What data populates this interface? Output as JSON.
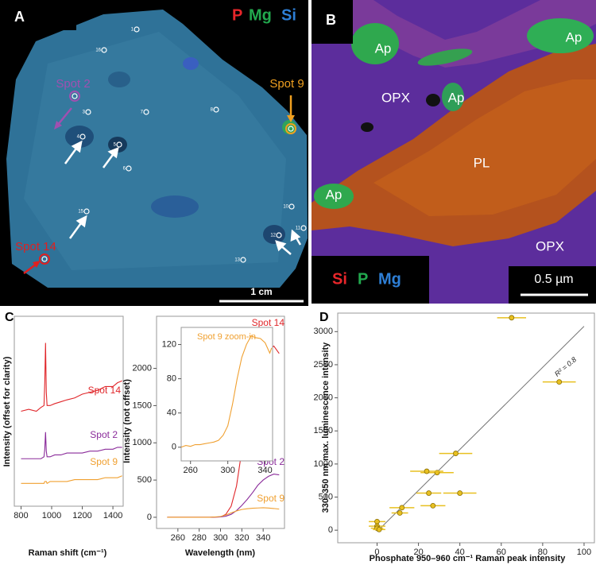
{
  "panel_a": {
    "letter": "A",
    "legend": [
      {
        "text": "P",
        "color": "#e8262a"
      },
      {
        "text": "Mg",
        "color": "#22a94e"
      },
      {
        "text": "Si",
        "color": "#2e7fd6"
      }
    ],
    "spot_numbers": [
      "1",
      "16",
      "3",
      "7",
      "8",
      "4",
      "5",
      "6",
      "15",
      "10",
      "11",
      "12",
      "13"
    ],
    "callouts": [
      "Spot 2",
      "Spot 9",
      "Spot 14"
    ],
    "scale_bar": "1 cm"
  },
  "panel_b": {
    "letter": "B",
    "labels": [
      "Ap",
      "Ap",
      "Ap",
      "Ap",
      "OPX",
      "OPX",
      "PL"
    ],
    "legend": [
      {
        "text": "Si",
        "color": "#e8262a"
      },
      {
        "text": "P",
        "color": "#22a94e"
      },
      {
        "text": "Mg",
        "color": "#2e7fd6"
      }
    ],
    "scale_bar": "0.5 µm"
  },
  "panel_c": {
    "letter": "C"
  },
  "panel_d": {
    "letter": "D"
  },
  "chart_data": [
    {
      "type": "line",
      "x": [
        800,
        850,
        900,
        930,
        950,
        955,
        960,
        965,
        970,
        990,
        1020,
        1060,
        1100,
        1150,
        1200,
        1250,
        1300,
        1350,
        1400,
        1430,
        1460
      ],
      "xlim": [
        756,
        1467
      ],
      "xticks": [
        800,
        1000,
        1200,
        1400
      ],
      "ylim": [
        0,
        10
      ],
      "xlabel": "Raman shift (cm⁻¹)",
      "ylabel": "Intensity (offset for clarity)",
      "series": [
        {
          "name": "Spot 14",
          "color": "#e0262a",
          "values": [
            5.0,
            5.1,
            5.0,
            5.2,
            5.3,
            6.5,
            8.6,
            6.0,
            5.3,
            5.3,
            5.4,
            5.5,
            5.6,
            5.7,
            5.9,
            6.0,
            6.1,
            6.3,
            6.3,
            6.5,
            6.6
          ]
        },
        {
          "name": "Spot 2",
          "color": "#8a2b9a",
          "values": [
            2.5,
            2.5,
            2.5,
            2.5,
            2.6,
            3.0,
            3.9,
            2.9,
            2.6,
            2.6,
            2.7,
            2.7,
            2.8,
            2.8,
            2.8,
            2.9,
            2.9,
            3.0,
            3.0,
            3.1,
            3.1
          ]
        },
        {
          "name": "Spot 9",
          "color": "#f0a030",
          "values": [
            1.2,
            1.2,
            1.2,
            1.2,
            1.2,
            1.3,
            1.3,
            1.3,
            1.2,
            1.3,
            1.3,
            1.3,
            1.3,
            1.4,
            1.4,
            1.4,
            1.4,
            1.5,
            1.5,
            1.5,
            1.6
          ]
        }
      ]
    },
    {
      "type": "line",
      "x": [
        250,
        260,
        270,
        280,
        290,
        300,
        305,
        310,
        315,
        320,
        325,
        330,
        335,
        340,
        345,
        350,
        355
      ],
      "xlim": [
        240,
        360
      ],
      "xticks": [
        260,
        280,
        300,
        320,
        340
      ],
      "ylim": [
        -150,
        2700
      ],
      "yticks": [
        0,
        500,
        1000,
        1500,
        2000
      ],
      "xlabel": "Wavelength (nm)",
      "ylabel": "Intensity (not offset)",
      "series": [
        {
          "name": "Spot 14",
          "color": "#e0262a",
          "values": [
            0,
            0,
            0,
            0,
            0,
            5,
            40,
            150,
            420,
            900,
            1400,
            1780,
            2000,
            2120,
            2230,
            2300,
            2200
          ]
        },
        {
          "name": "Spot 2",
          "color": "#8a2b9a",
          "values": [
            0,
            0,
            0,
            0,
            0,
            5,
            15,
            40,
            90,
            160,
            240,
            330,
            430,
            500,
            550,
            580,
            570
          ]
        },
        {
          "name": "Spot 9",
          "color": "#f0a030",
          "values": [
            0,
            0,
            0,
            0,
            0,
            10,
            30,
            60,
            85,
            105,
            115,
            122,
            125,
            128,
            124,
            118,
            110
          ]
        }
      ]
    },
    {
      "type": "line",
      "title": "Spot 9 zoom-in",
      "x": [
        250,
        255,
        260,
        265,
        270,
        275,
        280,
        285,
        290,
        295,
        300,
        305,
        310,
        315,
        320,
        325,
        330,
        335,
        340,
        345,
        347
      ],
      "xlim": [
        250,
        348
      ],
      "xticks": [
        260,
        300,
        340
      ],
      "ylim": [
        -16,
        140
      ],
      "yticks": [
        0,
        40,
        80,
        120
      ],
      "series": [
        {
          "color": "#f0a030",
          "values": [
            0,
            2,
            1,
            3,
            3,
            4,
            5,
            6,
            8,
            14,
            25,
            50,
            80,
            105,
            120,
            130,
            128,
            127,
            122,
            110,
            116
          ]
        }
      ]
    },
    {
      "type": "scatter",
      "x": [
        65,
        88,
        38,
        29,
        24,
        40,
        25,
        27,
        12,
        11,
        0,
        0,
        0,
        1
      ],
      "values": [
        3210,
        2240,
        1160,
        870,
        890,
        560,
        560,
        370,
        340,
        260,
        130,
        60,
        30,
        10
      ],
      "xerr": [
        7,
        8,
        8,
        8,
        8,
        8,
        6,
        6,
        6,
        4,
        4,
        4,
        3,
        3
      ],
      "color": "#e8c020",
      "xlim": [
        -19,
        105
      ],
      "xticks": [
        0,
        20,
        40,
        60,
        80,
        100
      ],
      "ylim": [
        -190,
        3280
      ],
      "yticks": [
        0,
        500,
        1000,
        1500,
        2000,
        2500,
        3000
      ],
      "xlabel": "Phosphate 950–960 cm⁻¹ Raman peak intensity",
      "ylabel": "330–350 nm max. luminescence intensity",
      "fit": {
        "x": [
          0,
          100
        ],
        "values": [
          -20,
          3080
        ]
      },
      "annotation": "R² = 0.8"
    }
  ]
}
